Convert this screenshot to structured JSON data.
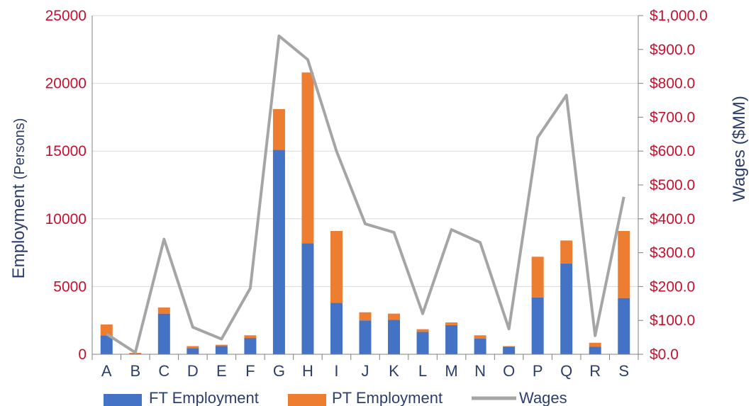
{
  "chart_data": {
    "type": "bar",
    "stacked": true,
    "categories": [
      "A",
      "B",
      "C",
      "D",
      "E",
      "F",
      "G",
      "H",
      "I",
      "J",
      "K",
      "L",
      "M",
      "N",
      "O",
      "P",
      "Q",
      "R",
      "S"
    ],
    "series": [
      {
        "name": "FT Employment",
        "type": "bar",
        "axis": "left",
        "color": "#4472c4",
        "values": [
          1400,
          50,
          3000,
          450,
          600,
          1200,
          15100,
          8200,
          3800,
          2500,
          2550,
          1650,
          2150,
          1150,
          550,
          4200,
          6700,
          550,
          4150
        ]
      },
      {
        "name": "PT Employment",
        "type": "bar",
        "axis": "left",
        "color": "#ed7d31",
        "values": [
          800,
          50,
          450,
          150,
          100,
          200,
          3000,
          12600,
          5300,
          600,
          450,
          200,
          200,
          250,
          50,
          3000,
          1700,
          300,
          4950
        ]
      },
      {
        "name": "Wages",
        "type": "line",
        "axis": "right",
        "color": "#a5a5a5",
        "values": [
          60,
          5,
          340,
          80,
          45,
          195,
          940,
          870,
          600,
          385,
          360,
          120,
          368,
          330,
          75,
          640,
          765,
          55,
          465
        ]
      }
    ],
    "ylabel_main": "Employment",
    "ylabel_unit": "(Persons)",
    "y2label": "Wages ($MM)",
    "ylim": [
      0,
      25000
    ],
    "y2lim": [
      0,
      1000
    ],
    "yticks": [
      "0",
      "5000",
      "10000",
      "15000",
      "20000",
      "25000"
    ],
    "y2ticks": [
      "$0.0",
      "$100.0",
      "$200.0",
      "$300.0",
      "$400.0",
      "$500.0",
      "$600.0",
      "$700.0",
      "$800.0",
      "$900.0",
      "$1,000.0"
    ],
    "grid": true,
    "legend": "bottom"
  }
}
